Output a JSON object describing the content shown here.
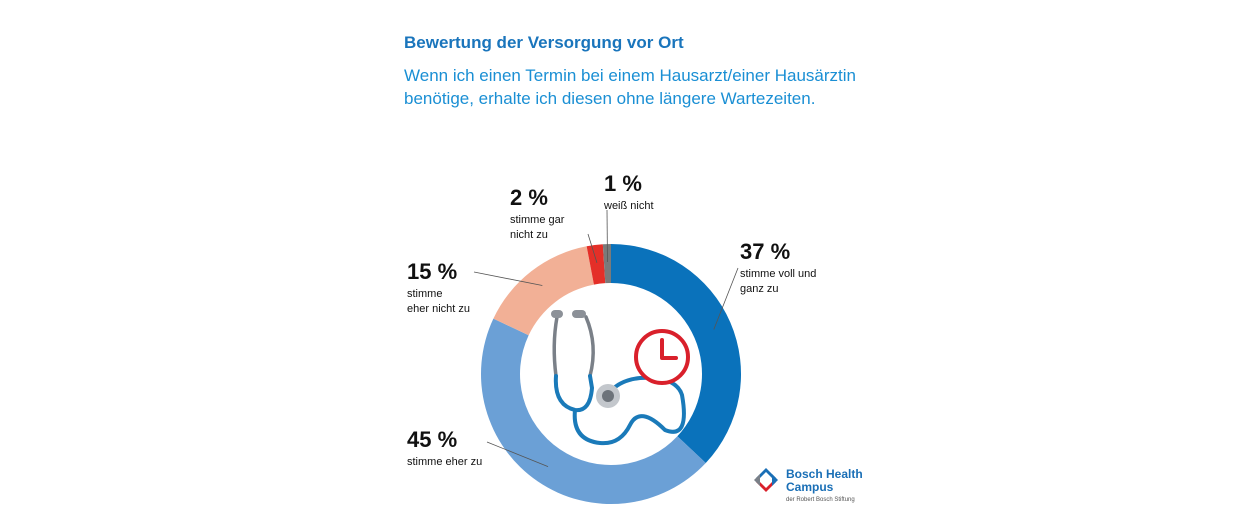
{
  "header": {
    "title": "Bewertung der Versorgung vor Ort",
    "subtitle": "Wenn ich einen Termin bei einem Hausarzt/einer Hausärztin benötige, erhalte ich diesen ohne längere Wartezeiten."
  },
  "chart_data": {
    "type": "pie",
    "variant": "donut",
    "title": "Bewertung der Versorgung vor Ort",
    "subtitle": "Wenn ich einen Termin bei einem Hausarzt/einer Hausärztin benötige, erhalte ich diesen ohne längere Wartezeiten.",
    "unit": "%",
    "slices": [
      {
        "key": "voll",
        "label_pct": "37 %",
        "label_line1": "stimme voll und",
        "label_line2": "ganz zu",
        "value": 37,
        "color": "#0a72bb"
      },
      {
        "key": "eher",
        "label_pct": "45 %",
        "label_line1": "stimme eher zu",
        "label_line2": "",
        "value": 45,
        "color": "#6ba0d6"
      },
      {
        "key": "ehernicht",
        "label_pct": "15 %",
        "label_line1": "stimme",
        "label_line2": "eher nicht zu",
        "value": 15,
        "color": "#f2b096"
      },
      {
        "key": "garnicht",
        "label_pct": "2 %",
        "label_line1": "stimme gar",
        "label_line2": "nicht zu",
        "value": 2,
        "color": "#e42f28"
      },
      {
        "key": "weiss",
        "label_pct": "1 %",
        "label_line1": "weiß nicht",
        "label_line2": "",
        "value": 1,
        "color": "#7a7a7a"
      }
    ]
  },
  "icons": {
    "center": "stethoscope-icon",
    "clock": "clock-icon",
    "clock_color": "#d9202b",
    "stethoscope_color": "#1a7ab9",
    "tube_color": "#7a8088"
  },
  "logo": {
    "line1": "Bosch Health",
    "line2": "Campus",
    "sub": "der Robert Bosch Stiftung"
  }
}
